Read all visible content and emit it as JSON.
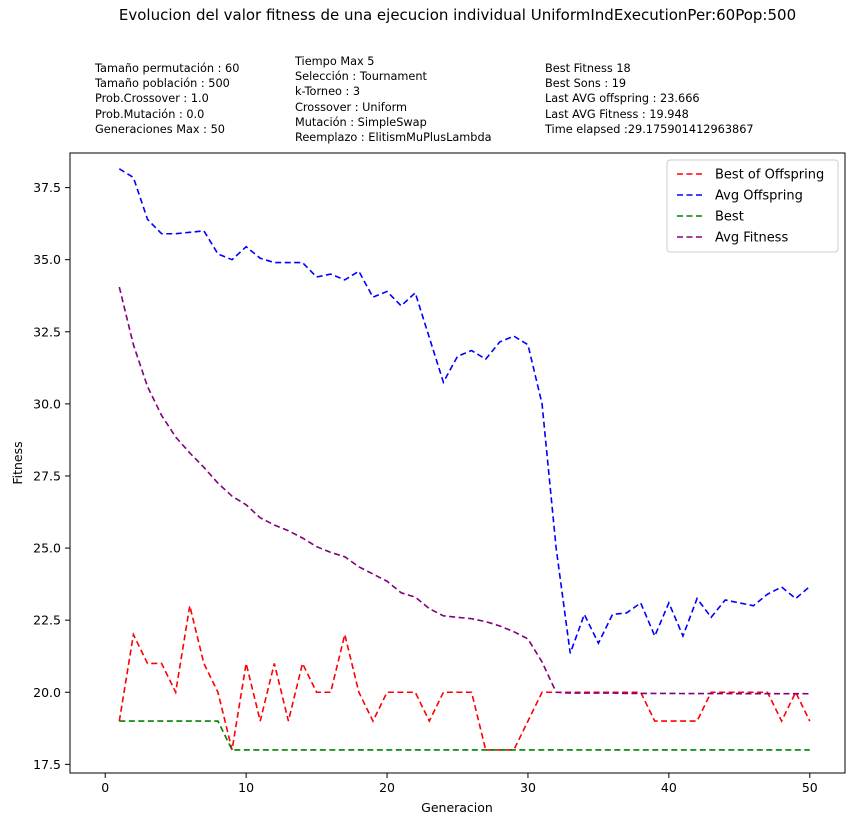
{
  "title": "Evolucion del valor fitness de una ejecucion individual UniformIndExecutionPer:60Pop:500",
  "info": {
    "col1": [
      "Tamaño permutación : 60",
      "Tamaño población : 500",
      "Prob.Crossover : 1.0",
      "Prob.Mutación : 0.0",
      "Generaciones Max : 50"
    ],
    "col2": [
      "Tiempo Max 5",
      "Selección : Tournament",
      "k-Torneo : 3",
      "Crossover : Uniform",
      "Mutación : SimpleSwap",
      "Reemplazo : ElitismMuPlusLambda"
    ],
    "col3": [
      "Best Fitness 18",
      "Best Sons : 19",
      "Last AVG offspring : 23.666",
      "Last AVG Fitness : 19.948",
      "Time elapsed :29.175901412963867"
    ]
  },
  "chart_data": {
    "type": "line",
    "xlabel": "Generacion",
    "ylabel": "Fitness",
    "xlim": [
      -2.5,
      52.5
    ],
    "ylim": [
      17.2,
      38.7
    ],
    "xticks": [
      0,
      10,
      20,
      30,
      40,
      50
    ],
    "yticks": [
      17.5,
      20.0,
      22.5,
      25.0,
      27.5,
      30.0,
      32.5,
      35.0,
      37.5
    ],
    "ytick_labels": [
      "17.5",
      "20.0",
      "22.5",
      "25.0",
      "27.5",
      "30.0",
      "32.5",
      "35.0",
      "37.5"
    ],
    "grid": false,
    "legend_position": "top-right",
    "x": [
      1,
      2,
      3,
      4,
      5,
      6,
      7,
      8,
      9,
      10,
      11,
      12,
      13,
      14,
      15,
      16,
      17,
      18,
      19,
      20,
      21,
      22,
      23,
      24,
      25,
      26,
      27,
      28,
      29,
      30,
      31,
      32,
      33,
      34,
      35,
      36,
      37,
      38,
      39,
      40,
      41,
      42,
      43,
      44,
      45,
      46,
      47,
      48,
      49,
      50
    ],
    "series": [
      {
        "name": "Best of Offspring",
        "color": "#ff0000",
        "values": [
          19,
          22,
          21,
          21,
          20,
          23,
          21,
          20,
          18,
          21,
          19,
          21,
          19,
          21,
          20,
          20,
          22,
          20,
          19,
          20,
          20,
          20,
          19,
          20,
          20,
          20,
          18,
          18,
          18,
          19,
          20,
          20,
          20,
          20,
          20,
          20,
          20,
          20,
          19,
          19,
          19,
          19,
          20,
          20,
          20,
          20,
          20,
          19,
          20,
          19
        ]
      },
      {
        "name": "Avg Offspring",
        "color": "#0000ff",
        "values": [
          38.15,
          37.85,
          36.4,
          35.9,
          35.9,
          35.95,
          36.0,
          35.2,
          35.0,
          35.45,
          35.05,
          34.9,
          34.9,
          34.9,
          34.4,
          34.5,
          34.3,
          34.6,
          33.7,
          33.9,
          33.4,
          33.85,
          32.3,
          30.75,
          31.65,
          31.85,
          31.55,
          32.15,
          32.35,
          32.05,
          30.0,
          25.0,
          21.35,
          22.7,
          21.7,
          22.7,
          22.75,
          23.1,
          21.95,
          23.1,
          21.95,
          23.25,
          22.6,
          23.2,
          23.1,
          23.0,
          23.4,
          23.65,
          23.25,
          23.666
        ]
      },
      {
        "name": "Best",
        "color": "#008000",
        "values": [
          19,
          19,
          19,
          19,
          19,
          19,
          19,
          19,
          18,
          18,
          18,
          18,
          18,
          18,
          18,
          18,
          18,
          18,
          18,
          18,
          18,
          18,
          18,
          18,
          18,
          18,
          18,
          18,
          18,
          18,
          18,
          18,
          18,
          18,
          18,
          18,
          18,
          18,
          18,
          18,
          18,
          18,
          18,
          18,
          18,
          18,
          18,
          18,
          18,
          18
        ]
      },
      {
        "name": "Avg Fitness",
        "color": "#800080",
        "values": [
          34.05,
          32.05,
          30.6,
          29.6,
          28.85,
          28.3,
          27.8,
          27.25,
          26.8,
          26.5,
          26.05,
          25.8,
          25.6,
          25.35,
          25.05,
          24.85,
          24.7,
          24.35,
          24.1,
          23.85,
          23.45,
          23.3,
          22.9,
          22.65,
          22.6,
          22.55,
          22.45,
          22.3,
          22.1,
          21.85,
          21.05,
          20.0,
          19.97,
          19.97,
          19.97,
          19.97,
          19.96,
          19.96,
          19.96,
          19.96,
          19.955,
          19.955,
          19.955,
          19.955,
          19.95,
          19.95,
          19.95,
          19.95,
          19.95,
          19.948
        ]
      }
    ]
  }
}
